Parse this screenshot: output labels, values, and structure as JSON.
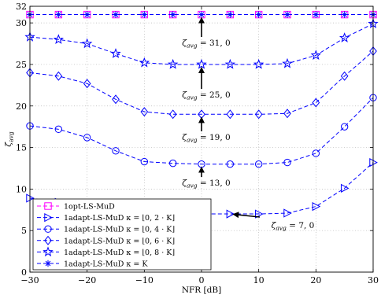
{
  "chart_data": {
    "type": "line",
    "xlabel": "NFR [dB]",
    "ylabel": "ζ_avg",
    "xlim": [
      -30,
      30
    ],
    "ylim": [
      0,
      32
    ],
    "xticks": [
      -30,
      -20,
      -10,
      0,
      10,
      20,
      30
    ],
    "yticks": [
      0,
      5,
      10,
      15,
      20,
      25,
      30,
      32
    ],
    "grid": true,
    "legend_position": "bottom-left",
    "x": [
      -30,
      -25,
      -20,
      -15,
      -10,
      -5,
      0,
      5,
      10,
      15,
      20,
      25,
      30
    ],
    "series": [
      {
        "name": "1opt-LS-MuD",
        "marker": "square",
        "color": "#ff00ff",
        "style": "dashed",
        "values": [
          31,
          31,
          31,
          31,
          31,
          31,
          31,
          31,
          31,
          31,
          31,
          31,
          31
        ]
      },
      {
        "name": "1adapt-LS-MuD κ = ⌊0, 2 · K⌋",
        "marker": "triangle-right",
        "color": "#0000ff",
        "style": "dashed",
        "values": [
          8.9,
          8.4,
          7.9,
          7.5,
          7.2,
          7.0,
          7.0,
          7.0,
          7.0,
          7.1,
          7.9,
          10.1,
          13.2
        ]
      },
      {
        "name": "1adapt-LS-MuD κ = ⌊0, 4 · K⌋",
        "marker": "circle",
        "color": "#0000ff",
        "style": "dashed",
        "values": [
          17.6,
          17.2,
          16.2,
          14.6,
          13.3,
          13.1,
          13.0,
          13.0,
          13.0,
          13.2,
          14.3,
          17.5,
          21.0
        ]
      },
      {
        "name": "1adapt-LS-MuD κ = ⌊0, 6 · K⌋",
        "marker": "diamond",
        "color": "#0000ff",
        "style": "dashed",
        "values": [
          24.0,
          23.6,
          22.7,
          20.8,
          19.3,
          19.0,
          19.0,
          19.0,
          19.0,
          19.1,
          20.4,
          23.6,
          26.6
        ]
      },
      {
        "name": "1adapt-LS-MuD κ = ⌊0, 8 · K⌋",
        "marker": "star",
        "color": "#0000ff",
        "style": "dashed",
        "values": [
          28.3,
          28.0,
          27.5,
          26.3,
          25.2,
          25.0,
          25.0,
          25.0,
          25.0,
          25.1,
          26.1,
          28.2,
          29.9
        ]
      },
      {
        "name": "1adapt-LS-MuD κ = K",
        "marker": "asterisk",
        "color": "#0000ff",
        "style": "dashed",
        "values": [
          31,
          31,
          31,
          31,
          31,
          31,
          31,
          31,
          31,
          31,
          31,
          31,
          31
        ]
      }
    ],
    "annotations": [
      {
        "text": "ζavg = 31, 0",
        "sub": "avg",
        "main": "ζ",
        "rest": " = 31, 0",
        "point": [
          0,
          31
        ]
      },
      {
        "text": "ζavg = 25, 0",
        "sub": "avg",
        "main": "ζ",
        "rest": " = 25, 0",
        "point": [
          0,
          25
        ]
      },
      {
        "text": "ζavg = 19, 0",
        "sub": "avg",
        "main": "ζ",
        "rest": " = 19, 0",
        "point": [
          0,
          19
        ]
      },
      {
        "text": "ζavg = 13, 0",
        "sub": "avg",
        "main": "ζ",
        "rest": " = 13, 0",
        "point": [
          0,
          13
        ]
      },
      {
        "text": "ζavg = 7, 0",
        "sub": "avg",
        "main": "ζ",
        "rest": " = 7, 0",
        "point": [
          5,
          7
        ]
      }
    ]
  }
}
